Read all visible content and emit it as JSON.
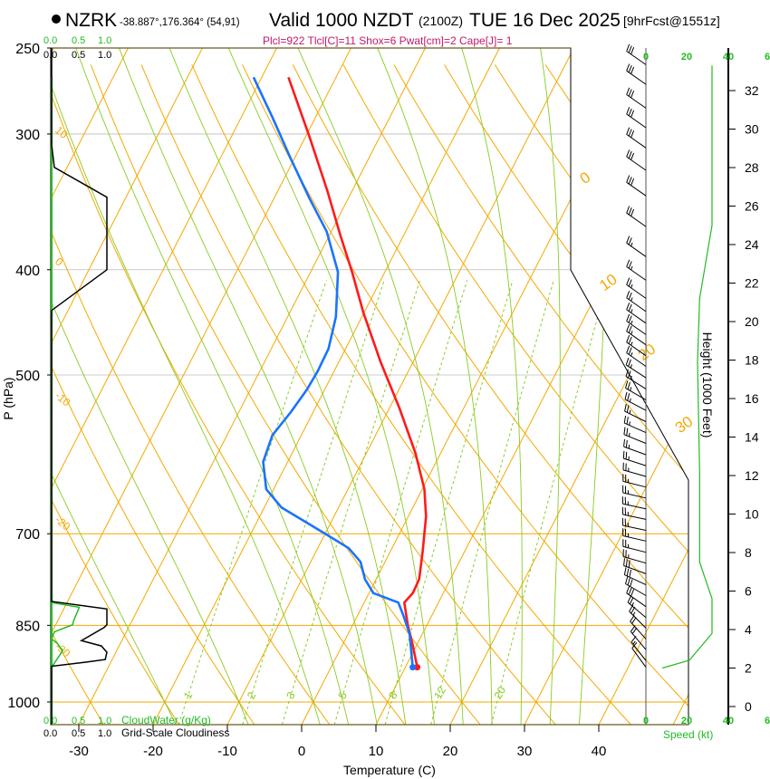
{
  "header": {
    "station": "NZRK",
    "coords": "-38.887°,176.364° (54,91)",
    "valid": "Valid 1000 NZDT",
    "utc": "(2100Z)",
    "date": "TUE 16 Dec 2025",
    "forecast": "[9hrFcst@1551z]",
    "indices": "Plcl=922 Tlcl[C]=11 Shox=6 Pwat[cm]=2 Cape[J]= 1"
  },
  "cloud_panel": {
    "top_green_ticks": [
      "0.0",
      "0.5",
      "1.0"
    ],
    "top_black_ticks": [
      "0.0",
      "0.5",
      "1.0"
    ],
    "bottom_green_ticks": [
      "0.0",
      "0.5",
      "1.0"
    ],
    "bottom_black_ticks": [
      "0.0",
      "0.5",
      "1.0"
    ],
    "cloudwater_label": "CloudWater (g/Kg)",
    "cloudiness_label": "Grid-Scale Cloudiness",
    "cloudiness": [
      [
        250,
        0
      ],
      [
        307,
        0
      ],
      [
        322,
        0.05
      ],
      [
        343,
        1.0
      ],
      [
        400,
        1.0
      ],
      [
        436,
        0
      ],
      [
        808,
        0
      ],
      [
        821,
        1.0
      ],
      [
        849,
        1.0
      ],
      [
        854,
        0.95
      ],
      [
        878,
        0.54
      ],
      [
        888,
        0.9
      ],
      [
        900,
        1.0
      ],
      [
        914,
        0.97
      ],
      [
        919,
        0.62
      ],
      [
        927,
        0
      ],
      [
        1049,
        0
      ]
    ],
    "cloudwater": [
      [
        266,
        0
      ],
      [
        810,
        0
      ],
      [
        818,
        0.5
      ],
      [
        841,
        0.4
      ],
      [
        849,
        0.38
      ],
      [
        862,
        0.05
      ],
      [
        875,
        0
      ],
      [
        883,
        0.1
      ],
      [
        897,
        0.2
      ],
      [
        929,
        0
      ],
      [
        1049,
        0
      ]
    ]
  },
  "speed_panel": {
    "top_ticks": [
      "0",
      "20",
      "40",
      "6"
    ],
    "bottom_ticks": [
      "0",
      "20",
      "40",
      "6"
    ],
    "label": "Speed (kt)",
    "profile": [
      [
        2.0,
        8
      ],
      [
        2.4,
        21
      ],
      [
        3.8,
        32
      ],
      [
        5.6,
        32
      ],
      [
        7.5,
        26
      ],
      [
        10.4,
        26
      ],
      [
        12.2,
        26
      ],
      [
        17.9,
        25
      ],
      [
        21.2,
        26
      ],
      [
        25,
        32
      ],
      [
        27.8,
        32
      ],
      [
        33.3,
        32
      ]
    ]
  },
  "height_axis": {
    "title": "Height (1000 Feet)",
    "ticks": [
      "0",
      "2",
      "4",
      "6",
      "8",
      "10",
      "12",
      "14",
      "16",
      "18",
      "20",
      "22",
      "24",
      "26",
      "28",
      "30",
      "32"
    ]
  },
  "colors": {
    "temperature": "#ff1a1a",
    "dewpoint": "#1a73ff",
    "isotherm": "#f5a800",
    "moist": "#88cc22",
    "mixing": "#88cc22",
    "cloud_green": "#22bb22",
    "indices": "#c0186a"
  },
  "chart_data": {
    "type": "line",
    "title": "Valid 1000 NZDT (2100Z) TUE 16 Dec 2025",
    "xlabel": "Temperature (C)",
    "ylabel": "P (hPa)",
    "xlim": [
      -34,
      52
    ],
    "ylim": [
      1049,
      250
    ],
    "x_ticks": [
      "-30",
      "-20",
      "-10",
      "0",
      "10",
      "20",
      "30",
      "40"
    ],
    "y_ticks": [
      "250",
      "300",
      "400",
      "500",
      "700",
      "850",
      "1000"
    ],
    "isotherm_labels": [
      "0",
      "10",
      "20",
      "30"
    ],
    "dry_adiabat_labels": [
      "10",
      "0",
      "-10",
      "-20",
      "-30"
    ],
    "mixing_ratio_labels": [
      "1",
      "2",
      "3",
      "5",
      "8",
      "12",
      "20"
    ],
    "series": [
      {
        "name": "Temperature",
        "points": [
          [
            266,
            -46.4
          ],
          [
            301,
            -39.6
          ],
          [
            338,
            -33.4
          ],
          [
            372,
            -28.5
          ],
          [
            402,
            -24.4
          ],
          [
            438,
            -20.1
          ],
          [
            487,
            -14.3
          ],
          [
            536,
            -8.7
          ],
          [
            590,
            -3.4
          ],
          [
            637,
            0.3
          ],
          [
            675,
            2.4
          ],
          [
            728,
            4.4
          ],
          [
            771,
            5.8
          ],
          [
            794,
            5.9
          ],
          [
            810,
            5.4
          ],
          [
            849,
            7.4
          ],
          [
            883,
            9.3
          ],
          [
            929,
            11.6
          ]
        ]
      },
      {
        "name": "Dewpoint",
        "points": [
          [
            266,
            -51.1
          ],
          [
            290,
            -45.7
          ],
          [
            316,
            -40.5
          ],
          [
            344,
            -35.2
          ],
          [
            369,
            -30.6
          ],
          [
            402,
            -26.3
          ],
          [
            442,
            -23.5
          ],
          [
            473,
            -22.3
          ],
          [
            496,
            -22.2
          ],
          [
            516,
            -22.4
          ],
          [
            541,
            -23.0
          ],
          [
            568,
            -23.9
          ],
          [
            601,
            -23.3
          ],
          [
            637,
            -21.0
          ],
          [
            662,
            -17.7
          ],
          [
            681,
            -13.8
          ],
          [
            701,
            -9.8
          ],
          [
            722,
            -5.8
          ],
          [
            743,
            -3.3
          ],
          [
            771,
            -1.5
          ],
          [
            794,
            0.6
          ],
          [
            810,
            4.6
          ],
          [
            833,
            6.2
          ],
          [
            866,
            8.3
          ],
          [
            929,
            11.0
          ]
        ]
      }
    ],
    "winds": {
      "pressure": [
        259,
        270,
        284,
        296,
        309,
        324,
        342,
        365,
        389,
        409,
        425,
        437,
        448,
        459,
        469,
        480,
        491,
        503,
        515,
        527,
        539,
        552,
        565,
        578,
        592,
        606,
        620,
        634,
        649,
        664,
        679,
        695,
        711,
        728,
        745,
        762,
        780,
        798,
        817,
        836,
        855,
        875,
        895,
        916,
        929
      ],
      "direction": [
        305,
        305,
        305,
        305,
        305,
        305,
        305,
        305,
        305,
        305,
        305,
        305,
        305,
        305,
        305,
        305,
        305,
        303,
        302,
        300,
        298,
        296,
        294,
        292,
        290,
        288,
        286,
        284,
        283,
        282,
        282,
        282,
        283,
        284,
        286,
        290,
        295,
        300,
        305,
        310,
        315,
        318,
        320,
        322,
        324
      ],
      "speed": [
        30,
        30,
        30,
        30,
        30,
        30,
        30,
        30,
        28,
        26,
        26,
        26,
        26,
        25,
        25,
        25,
        25,
        25,
        25,
        25,
        25,
        25,
        26,
        26,
        26,
        26,
        26,
        26,
        26,
        26,
        26,
        26,
        26,
        27,
        28,
        30,
        30,
        30,
        30,
        28,
        25,
        22,
        20,
        15,
        10
      ]
    }
  }
}
